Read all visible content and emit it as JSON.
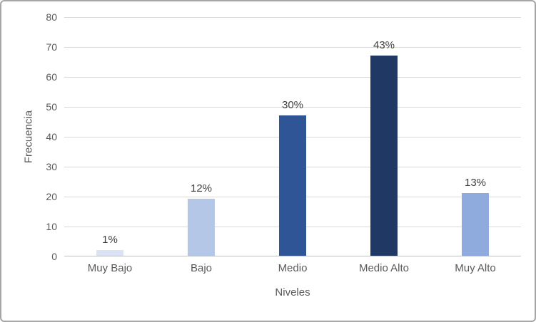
{
  "frame": {
    "border_color": "#a6a6a6",
    "background_color": "#ffffff"
  },
  "chart_data": {
    "type": "bar",
    "title": "",
    "categories": [
      "Muy Bajo",
      "Bajo",
      "Medio",
      "Medio Alto",
      "Muy Alto"
    ],
    "values": [
      2,
      19,
      47,
      67,
      21
    ],
    "data_labels": [
      "1%",
      "12%",
      "30%",
      "43%",
      "13%"
    ],
    "xlabel": "Niveles",
    "ylabel": "Frecuencia",
    "ylim": [
      0,
      80
    ],
    "yticks": [
      0,
      10,
      20,
      30,
      40,
      50,
      60,
      70,
      80
    ],
    "grid": "horizontal",
    "legend": "none",
    "bar_colors": [
      "#dae3f3",
      "#b4c7e7",
      "#2f5597",
      "#1f3864",
      "#8faadc"
    ],
    "gridline_color": "#d9d9d9",
    "axis_line_color": "#bfbfbf",
    "tick_label_color": "#595959",
    "axis_title_color": "#595959",
    "data_label_color": "#404040"
  }
}
